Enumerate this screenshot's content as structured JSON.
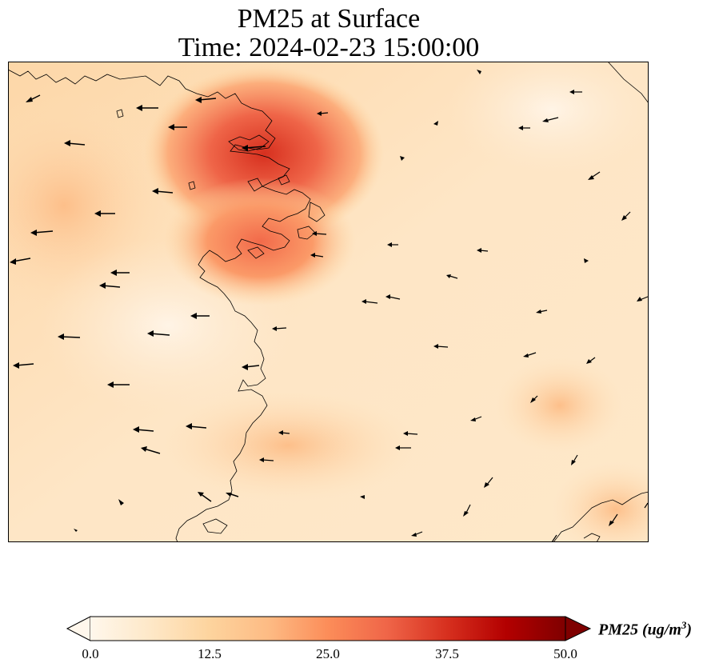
{
  "title": {
    "line1": "PM25 at Surface",
    "line2": "Time: 2024-02-23 15:00:00"
  },
  "colorbar": {
    "label": "PM25 (ug/m",
    "label_sup": "3",
    "label_end": ")",
    "ticks": [
      "0.0",
      "12.5",
      "25.0",
      "37.5",
      "50.0"
    ],
    "min": 0,
    "max": 50,
    "extend": "both",
    "colormap": "OrRd",
    "colors": [
      "#fff7ec",
      "#fee8c8",
      "#fdd49e",
      "#fdbb84",
      "#fc8d59",
      "#ef6548",
      "#d7301f",
      "#b30000",
      "#7f0000"
    ]
  },
  "map": {
    "field": "PM25",
    "units": "ug/m3",
    "background": "light orange, elevated PM25 over northern-central coast",
    "hotspot_max_approx": 33
  }
}
